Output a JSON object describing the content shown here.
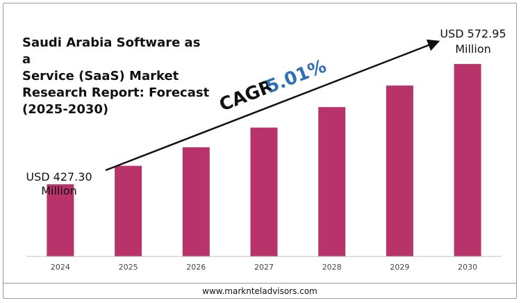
{
  "chart_data": {
    "type": "bar",
    "title": "Saudi Arabia Software as a Service (SaaS) Market Research Report: Forecast (2025-2030)",
    "categories": [
      "2024",
      "2025",
      "2026",
      "2027",
      "2028",
      "2029",
      "2030"
    ],
    "values": [
      427.3,
      449.7,
      472.2,
      496.0,
      520.8,
      546.9,
      572.95
    ],
    "ylim": [
      340,
      600
    ],
    "xlabel": "",
    "ylabel": "",
    "bar_color": "#b8336a",
    "annotations": {
      "start_line1": "USD 427.30",
      "start_line2": "Million",
      "end_line1": "USD 572.95",
      "end_line2": "Million",
      "cagr_label": "CAGR",
      "cagr_value": "5.01%",
      "cagr_color": "#2f6fb3"
    }
  },
  "title_text": "Saudi Arabia Software as a\nService (SaaS) Market\nResearch Report: Forecast\n(2025-2030)",
  "footer": {
    "website": "www.marknteladvisors.com"
  }
}
